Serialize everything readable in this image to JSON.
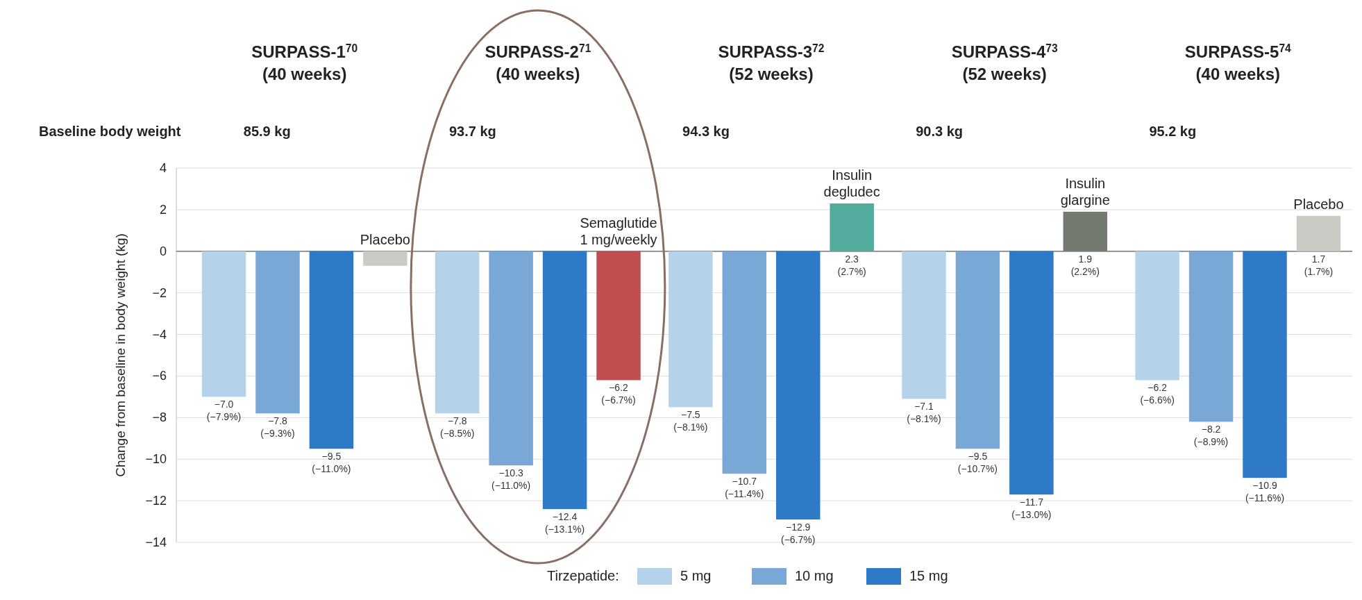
{
  "chart_data": {
    "type": "bar",
    "ylabel": "Change from baseline in body weight (kg)",
    "categories": [
      "SURPASS-1$^{70}$ (40 weeks)",
      "SURPASS-2$^{71}$ (40 weeks)",
      "SURPASS-3$^{72}$ (52 weeks)",
      "SURPASS-4$^{73}$ (52 weeks)",
      "SURPASS-5$^{74}$ (40 weeks)"
    ],
    "series": [
      {
        "name": "5 mg",
        "color": "#b5d2eb",
        "values": [
          -7.0,
          -7.8,
          -7.5,
          -7.1,
          -6.2
        ],
        "value_labels": [
          "−7.0 (−7.9%)",
          "−7.8 (−8.5%)",
          "−7.5 (−8.1%)",
          "−7.1 (−8.1%)",
          "−6.2 (−6.6%)"
        ]
      },
      {
        "name": "10 mg",
        "color": "#79a8d7",
        "values": [
          -7.8,
          -10.3,
          -10.7,
          -9.5,
          -8.2
        ],
        "value_labels": [
          "−7.8 (−9.3%)",
          "−10.3 (−11.0%)",
          "−10.7 (−11.4%)",
          "−9.5 (−10.7%)",
          "−8.2 (−8.9%)"
        ]
      },
      {
        "name": "15 mg",
        "color": "#2f7ac6",
        "values": [
          -9.5,
          -12.4,
          -12.9,
          -11.7,
          -10.9
        ],
        "value_labels": [
          "−9.5 (−11.0%)",
          "−12.4 (−13.1%)",
          "−12.9 (−6.7%)",
          "−11.7 (−13.0%)",
          "−10.9 (−11.6%)"
        ]
      },
      {
        "colors": [
          "#cbcbc5",
          "#c14f50",
          "#52ab9c",
          "#747a6f",
          "#cbcbc5"
        ],
        "values": [
          -0.7,
          -6.2,
          2.3,
          1.9,
          1.7
        ],
        "value_labels": [
          null,
          "−6.2 (−6.7%)",
          "2.3 (2.7%)",
          "1.9 (2.2%)",
          "1.7 (1.7%)"
        ]
      }
    ],
    "annotations": [
      "Baseline body weight",
      "85.9 kg",
      "93.7 kg",
      "94.3 kg",
      "90.3 kg",
      "95.2 kg",
      "Placebo",
      "Semaglutide 1 mg/weekly",
      "Insulin degludec",
      "Insulin glargine",
      "Placebo"
    ],
    "ylim": [
      -14,
      4
    ],
    "yticks": [
      -14,
      -12,
      -10,
      -8,
      -6,
      -4,
      -2,
      0,
      2,
      4
    ],
    "grid": "y",
    "legend": "bottom",
    "legend_title": "Tirzepatide:"
  }
}
